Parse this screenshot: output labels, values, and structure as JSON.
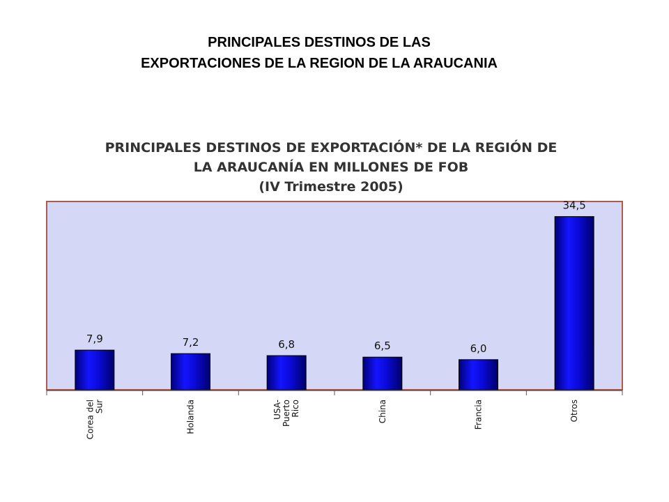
{
  "slide": {
    "title_line1": "PRINCIPALES DESTINOS DE LAS",
    "title_line2": "EXPORTACIONES DE LA REGION DE LA ARAUCANIA"
  },
  "chart_data": {
    "type": "bar",
    "title_lines": [
      "PRINCIPALES DESTINOS  DE EXPORTACIÓN* DE LA REGIÓN DE",
      "LA ARAUCANÍA EN MILLONES DE FOB",
      "(IV Trimestre 2005)"
    ],
    "categories": [
      [
        "Corea del",
        "Sur"
      ],
      [
        "Holanda"
      ],
      [
        "USA-",
        "Puerto",
        "Rico"
      ],
      [
        "China"
      ],
      [
        "Francia"
      ],
      [
        "Otros"
      ]
    ],
    "values": [
      7.9,
      7.2,
      6.8,
      6.5,
      6.0,
      34.5
    ],
    "value_labels": [
      "7,9",
      "7,2",
      "6,8",
      "6,5",
      "6,0",
      "34,5"
    ],
    "ylim": [
      0,
      37.5
    ],
    "grid": false,
    "legend": "none",
    "colors": {
      "plot_background": "#d4d8f6",
      "plot_border": "#b05a4a",
      "bar": "#0a0ad8",
      "bar_dark": "#00007a",
      "axis": "#555555"
    }
  }
}
